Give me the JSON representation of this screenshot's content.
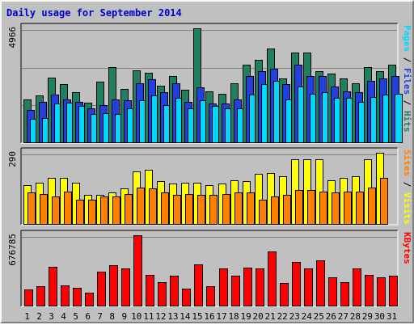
{
  "title": "Daily usage for September 2014",
  "colors": {
    "background": "#c0c0c0",
    "hits": "#1e8060",
    "files": "#2040e0",
    "pages": "#00d8ff",
    "visits": "#ffff00",
    "sites": "#ff8000",
    "kbytes": "#ff0000",
    "title": "#0000cc",
    "weekend_day": "#007050"
  },
  "panel_labels": {
    "hits": "Hits",
    "files": "Files",
    "pages": "Pages",
    "visits": "Visits",
    "sites": "Sites",
    "kbytes": "KBytes",
    "sep": " / "
  },
  "chart_data": [
    {
      "type": "bar",
      "name": "hits-files-pages",
      "categories": [
        "1",
        "2",
        "3",
        "4",
        "5",
        "6",
        "7",
        "8",
        "9",
        "10",
        "11",
        "12",
        "13",
        "14",
        "15",
        "16",
        "17",
        "18",
        "19",
        "20",
        "21",
        "22",
        "23",
        "24",
        "25",
        "26",
        "27",
        "28",
        "29",
        "30",
        "31"
      ],
      "ymax_label": "4966",
      "ylim": [
        0,
        4966
      ],
      "series": [
        {
          "name": "Hits",
          "values": [
            1900,
            2050,
            2850,
            2550,
            2200,
            1750,
            2650,
            3300,
            2350,
            3150,
            3050,
            2500,
            2900,
            2300,
            4966,
            2250,
            2150,
            2600,
            3400,
            3600,
            4100,
            2800,
            3900,
            3900,
            3100,
            3000,
            2800,
            2600,
            3300,
            3100,
            3400
          ]
        },
        {
          "name": "Files",
          "values": [
            1450,
            1800,
            2100,
            1900,
            1800,
            1520,
            1650,
            1900,
            1850,
            2600,
            2750,
            2200,
            2600,
            1800,
            2400,
            1700,
            1700,
            1900,
            2900,
            3100,
            3200,
            2550,
            3400,
            2900,
            2900,
            2450,
            2250,
            2200,
            2700,
            2800,
            2900
          ]
        },
        {
          "name": "Pages",
          "values": [
            1050,
            1100,
            1700,
            1750,
            1600,
            1250,
            1300,
            1250,
            1500,
            1850,
            2050,
            1650,
            1950,
            1500,
            1850,
            1600,
            1500,
            1500,
            2100,
            2550,
            2700,
            1900,
            2450,
            2150,
            2200,
            1950,
            1950,
            1800,
            2000,
            2100,
            2150
          ]
        }
      ]
    },
    {
      "type": "bar",
      "name": "visits-sites",
      "categories": [
        "1",
        "2",
        "3",
        "4",
        "5",
        "6",
        "7",
        "8",
        "9",
        "10",
        "11",
        "12",
        "13",
        "14",
        "15",
        "16",
        "17",
        "18",
        "19",
        "20",
        "21",
        "22",
        "23",
        "24",
        "25",
        "26",
        "27",
        "28",
        "29",
        "30",
        "31"
      ],
      "ymax_label": "290",
      "ylim": [
        0,
        290
      ],
      "series": [
        {
          "name": "Visits",
          "values": [
            160,
            170,
            190,
            190,
            170,
            120,
            120,
            130,
            145,
            215,
            220,
            175,
            165,
            170,
            170,
            160,
            165,
            180,
            175,
            205,
            210,
            195,
            265,
            265,
            265,
            180,
            190,
            195,
            265,
            290,
            0
          ]
        },
        {
          "name": "Sites",
          "values": [
            130,
            125,
            115,
            135,
            100,
            100,
            115,
            115,
            125,
            150,
            145,
            130,
            120,
            125,
            120,
            120,
            125,
            130,
            130,
            100,
            115,
            120,
            140,
            140,
            135,
            130,
            135,
            135,
            150,
            190,
            0
          ]
        }
      ]
    },
    {
      "type": "bar",
      "name": "kbytes",
      "categories": [
        "1",
        "2",
        "3",
        "4",
        "5",
        "6",
        "7",
        "8",
        "9",
        "10",
        "11",
        "12",
        "13",
        "14",
        "15",
        "16",
        "17",
        "18",
        "19",
        "20",
        "21",
        "22",
        "23",
        "24",
        "25",
        "26",
        "27",
        "28",
        "29",
        "30",
        "31"
      ],
      "ymax_label": "676785",
      "ylim": [
        0,
        676785
      ],
      "series": [
        {
          "name": "KBytes",
          "values": [
            160000,
            190000,
            380000,
            200000,
            180000,
            130000,
            330000,
            390000,
            360000,
            676785,
            300000,
            230000,
            290000,
            170000,
            400000,
            190000,
            360000,
            290000,
            370000,
            360000,
            520000,
            220000,
            420000,
            360000,
            440000,
            280000,
            230000,
            360000,
            300000,
            280000,
            290000
          ]
        }
      ]
    }
  ],
  "weekend_days": [
    "6",
    "7",
    "13",
    "14",
    "20",
    "21",
    "27",
    "28"
  ]
}
